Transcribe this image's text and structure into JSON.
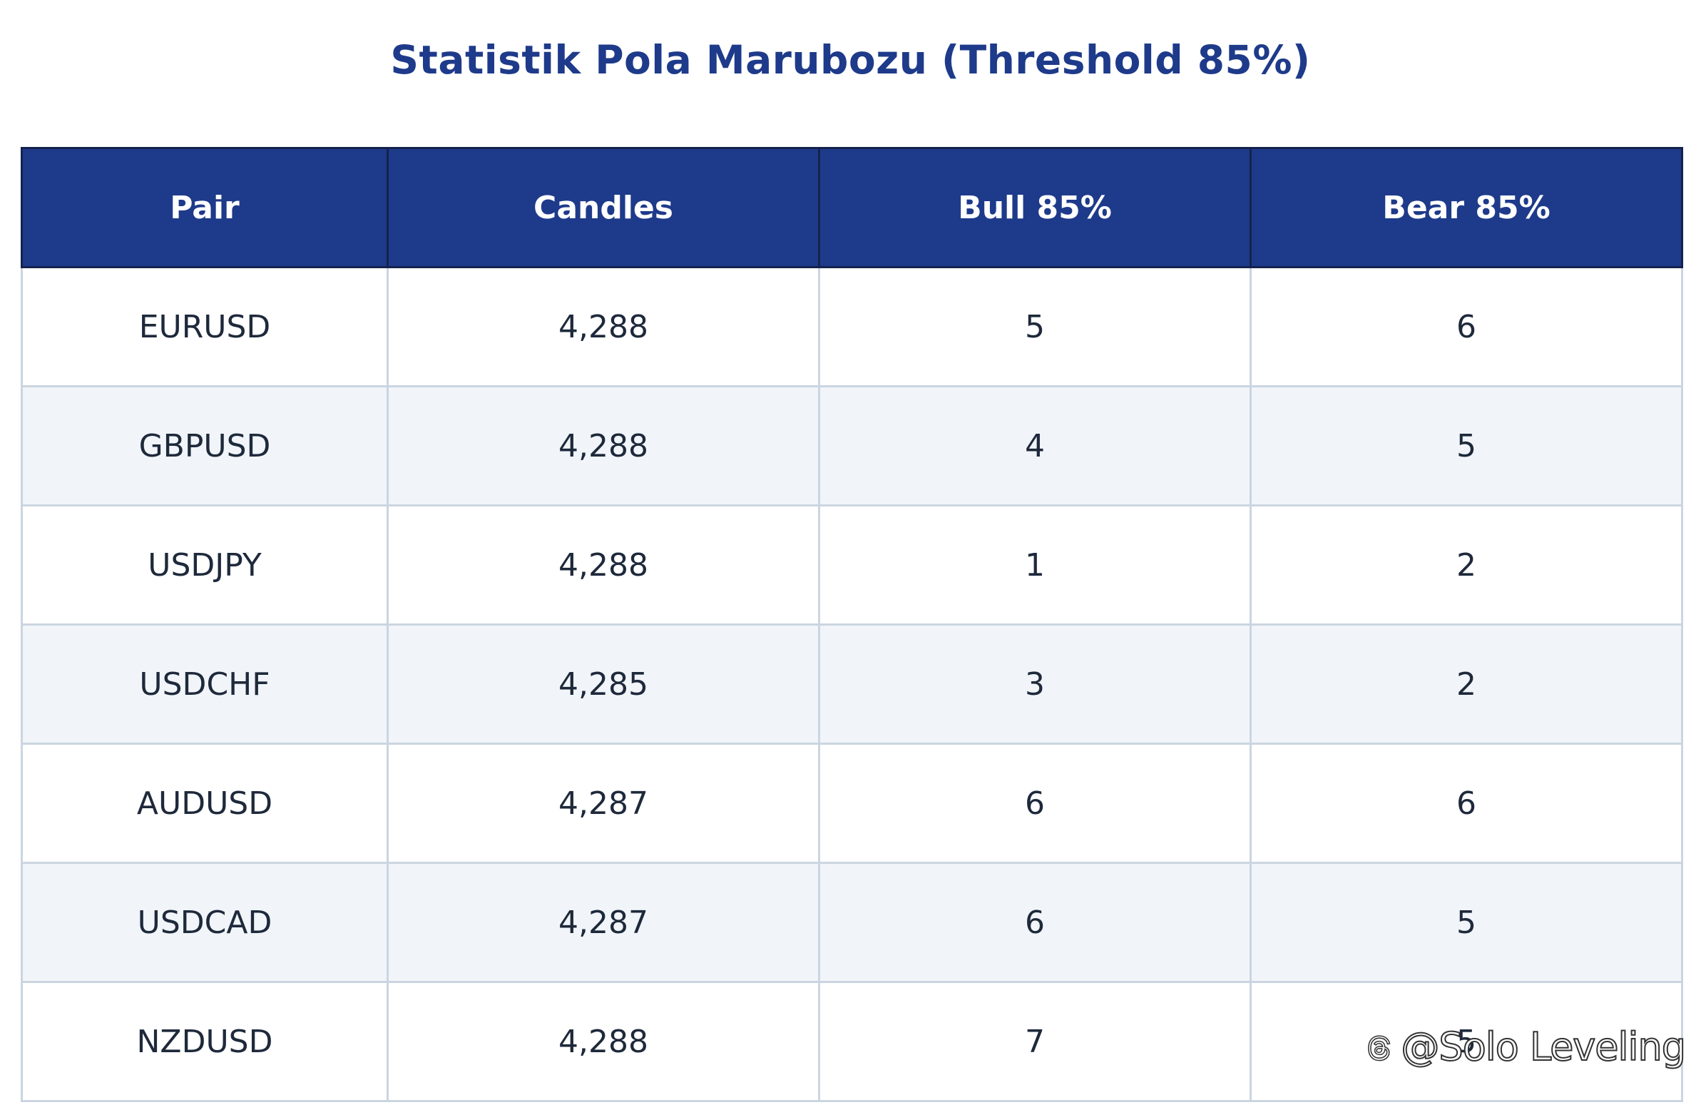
{
  "chart_data": {
    "type": "table",
    "title": "Statistik Pola Marubozu (Threshold 85%)",
    "columns": [
      "Pair",
      "Candles",
      "Bull 85%",
      "Bear 85%"
    ],
    "rows": [
      [
        "EURUSD",
        "4,288",
        "5",
        "6"
      ],
      [
        "GBPUSD",
        "4,288",
        "4",
        "5"
      ],
      [
        "USDJPY",
        "4,288",
        "1",
        "2"
      ],
      [
        "USDCHF",
        "4,285",
        "3",
        "2"
      ],
      [
        "AUDUSD",
        "4,287",
        "6",
        "6"
      ],
      [
        "USDCAD",
        "4,287",
        "6",
        "5"
      ],
      [
        "NZDUSD",
        "4,288",
        "7",
        "5"
      ]
    ],
    "header_color": "#1e3a8a",
    "stripe_color": "#f1f5f9"
  },
  "watermark": {
    "text": "@Solo Leveling",
    "icon": "threads-icon"
  }
}
